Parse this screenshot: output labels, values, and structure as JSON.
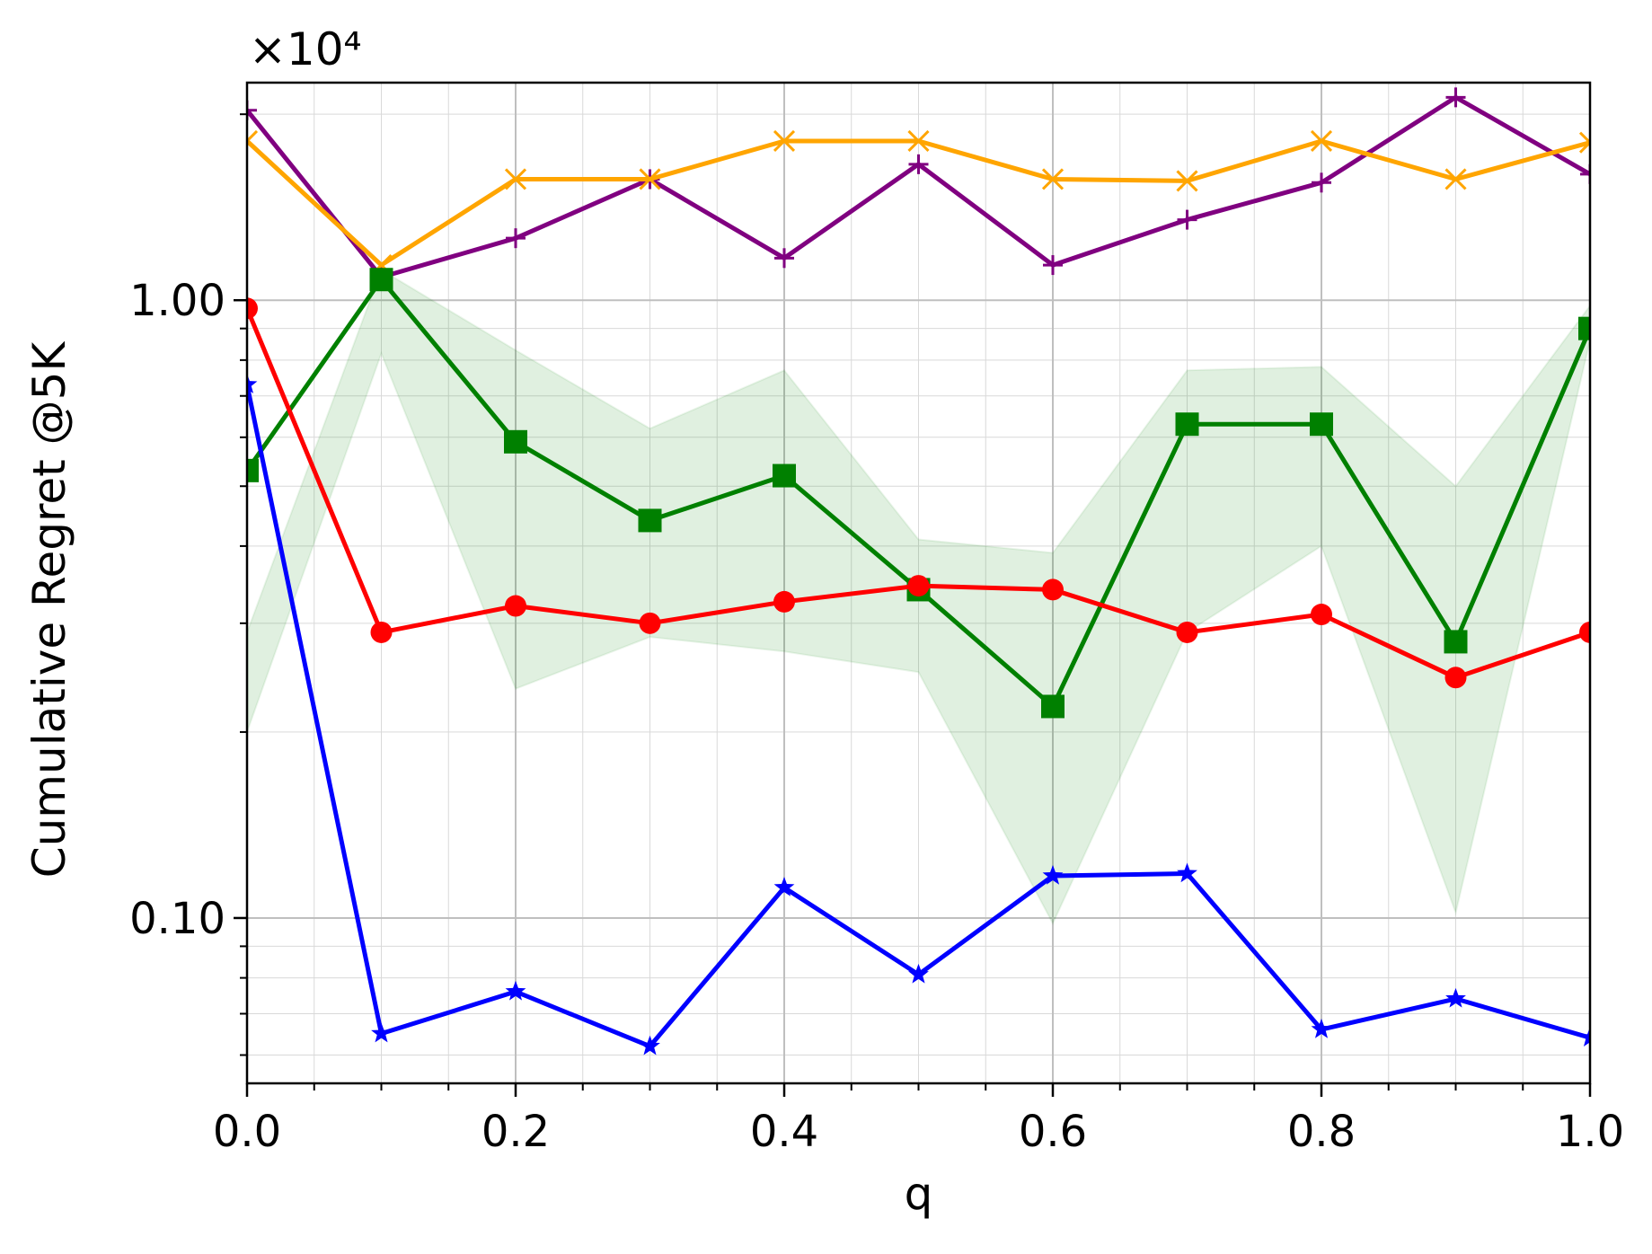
{
  "chart_data": {
    "type": "line",
    "xlabel": "q",
    "ylabel": "Cumulative Regret @5K",
    "y_multiplier": "×10⁴",
    "yscale": "log",
    "xlim": [
      0.0,
      1.0
    ],
    "ylim": [
      0.054,
      2.25
    ],
    "grid": true,
    "x_ticks": [
      {
        "value": 0.0,
        "label": "0.0"
      },
      {
        "value": 0.2,
        "label": "0.2"
      },
      {
        "value": 0.4,
        "label": "0.4"
      },
      {
        "value": 0.6,
        "label": "0.6"
      },
      {
        "value": 0.8,
        "label": "0.8"
      },
      {
        "value": 1.0,
        "label": "1.0"
      }
    ],
    "y_ticks": [
      {
        "value": 0.1,
        "label": "0.10"
      },
      {
        "value": 1.0,
        "label": "1.00"
      }
    ],
    "x": [
      0.0,
      0.1,
      0.2,
      0.3,
      0.4,
      0.5,
      0.6,
      0.7,
      0.8,
      0.9,
      1.0
    ],
    "band": {
      "color": "#008000",
      "opacity": 0.12,
      "lower": [
        0.2,
        0.82,
        0.235,
        0.285,
        0.27,
        0.25,
        0.098,
        0.29,
        0.4,
        0.102,
        0.86
      ],
      "upper": [
        0.29,
        1.12,
        0.83,
        0.62,
        0.77,
        0.41,
        0.39,
        0.77,
        0.78,
        0.5,
        0.98
      ]
    },
    "series": [
      {
        "color": "#800080",
        "marker": "plus",
        "values": [
          2.03,
          1.09,
          1.26,
          1.57,
          1.17,
          1.66,
          1.14,
          1.35,
          1.55,
          2.13,
          1.6
        ]
      },
      {
        "color": "#ffa500",
        "marker": "x",
        "values": [
          1.81,
          1.14,
          1.57,
          1.57,
          1.81,
          1.81,
          1.57,
          1.56,
          1.81,
          1.57,
          1.8
        ]
      },
      {
        "color": "#008000",
        "marker": "square",
        "values": [
          0.53,
          1.08,
          0.59,
          0.44,
          0.52,
          0.34,
          0.22,
          0.63,
          0.63,
          0.28,
          0.9
        ]
      },
      {
        "color": "#ff0000",
        "marker": "circle",
        "values": [
          0.97,
          0.29,
          0.32,
          0.3,
          0.325,
          0.345,
          0.34,
          0.29,
          0.31,
          0.245,
          0.29
        ]
      },
      {
        "color": "#0000ff",
        "marker": "star",
        "values": [
          0.73,
          0.065,
          0.076,
          0.062,
          0.112,
          0.081,
          0.117,
          0.118,
          0.066,
          0.074,
          0.064
        ]
      }
    ]
  }
}
